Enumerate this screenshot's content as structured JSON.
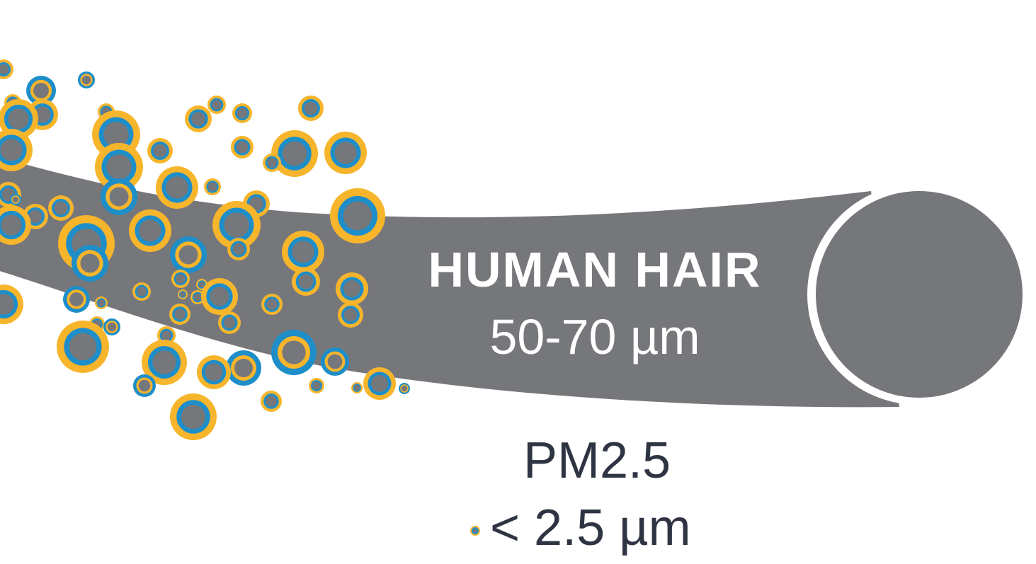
{
  "hair": {
    "label": "HUMAN HAIR",
    "size": "50-70 µm"
  },
  "pm": {
    "label": "PM2.5",
    "size": "< 2.5 µm"
  },
  "colors": {
    "hair": "#76777b",
    "hair_outline": "#ffffff",
    "particle_orange": "#f7b52c",
    "particle_blue": "#1e8ec9",
    "particle_core": "#76777b",
    "text_light": "#ffffff",
    "text_dark": "#2e3442"
  }
}
